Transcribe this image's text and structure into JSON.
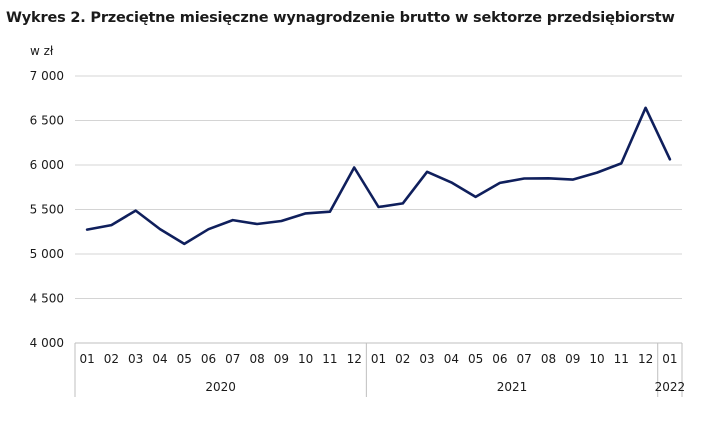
{
  "title": "Wykres 2. Przeciętne miesięczne wynagrodzenie brutto w sektorze przedsiębiorstw",
  "chart_data": {
    "type": "line",
    "ylabel": "w zł",
    "ylim": [
      4000,
      7000
    ],
    "yticks": [
      4000,
      4500,
      5000,
      5500,
      6000,
      6500,
      7000
    ],
    "ytick_labels": [
      "4 000",
      "4 500",
      "5 000",
      "5 500",
      "6 000",
      "6 500",
      "7 000"
    ],
    "grid": true,
    "categories": [
      "01",
      "02",
      "03",
      "04",
      "05",
      "06",
      "07",
      "08",
      "09",
      "10",
      "11",
      "12",
      "01",
      "02",
      "03",
      "04",
      "05",
      "06",
      "07",
      "08",
      "09",
      "10",
      "11",
      "12",
      "01"
    ],
    "year_groups": [
      {
        "label": "2020",
        "count": 12
      },
      {
        "label": "2021",
        "count": 12
      },
      {
        "label": "2022",
        "count": 1
      }
    ],
    "series": [
      {
        "color": "#0f1f5c",
        "values": [
          5274,
          5325,
          5488,
          5280,
          5113,
          5279,
          5381,
          5337,
          5371,
          5456,
          5475,
          5972,
          5528,
          5569,
          5924,
          5805,
          5642,
          5799,
          5848,
          5850,
          5836,
          5915,
          6018,
          6643,
          6064
        ]
      }
    ]
  }
}
